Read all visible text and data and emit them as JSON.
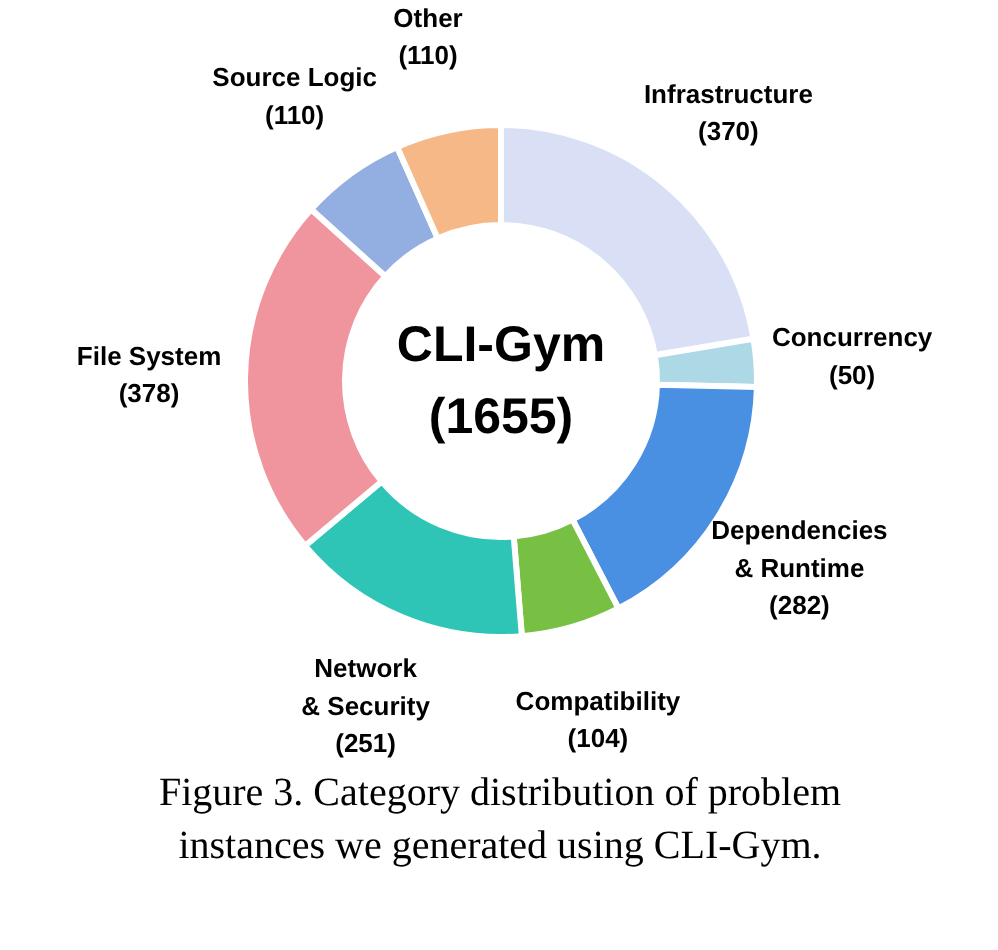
{
  "chart_data": {
    "type": "donut",
    "title": "CLI-Gym",
    "subtitle": "(1655)",
    "categories": [
      "Infrastructure",
      "Concurrency",
      "Dependencies & Runtime",
      "Compatibility",
      "Network & Security",
      "File System",
      "Source Logic",
      "Other"
    ],
    "values": [
      370,
      50,
      282,
      104,
      251,
      378,
      110,
      110
    ],
    "colors": [
      "#d9dff5",
      "#add8e6",
      "#4a90e2",
      "#77c043",
      "#2ec4b6",
      "#f0959e",
      "#93aee0",
      "#f5b886"
    ],
    "value_labels": [
      "(370)",
      "(50)",
      "(282)",
      "(104)",
      "(251)",
      "(378)",
      "(110)",
      "(110)"
    ],
    "annotations": [
      "Figure 3. Category distribution of problem instances we generated using CLI-Gym."
    ]
  }
}
